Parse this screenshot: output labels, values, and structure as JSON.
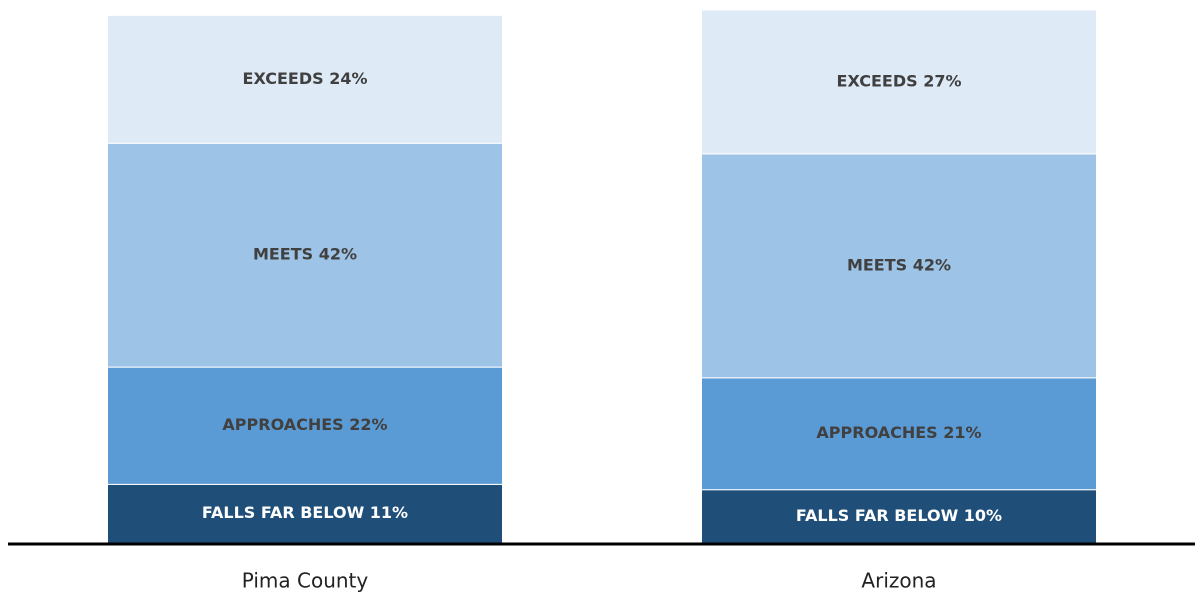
{
  "chart_data": {
    "type": "stacked_bar",
    "categories": [
      "Pima County",
      "Arizona"
    ],
    "series": [
      {
        "color": "#1f4e79",
        "label_color": "#ffffff",
        "values": [
          11,
          10
        ],
        "value_labels": [
          "FALLS FAR BELOW 11%",
          "FALLS FAR BELOW 10%"
        ]
      },
      {
        "color": "#5b9bd5",
        "label_color": "#404040",
        "values": [
          22,
          21
        ],
        "value_labels": [
          "APPROACHES 22%",
          "APPROACHES 21%"
        ]
      },
      {
        "color": "#9dc3e6",
        "label_color": "#404040",
        "values": [
          42,
          42
        ],
        "value_labels": [
          "MEETS 42%",
          "MEETS 42%"
        ]
      },
      {
        "color": "#deeaf6",
        "label_color": "#404040",
        "values": [
          24,
          27
        ],
        "value_labels": [
          "EXCEEDS 24%",
          "EXCEEDS 27%"
        ]
      }
    ],
    "ylim": [
      0,
      100
    ]
  }
}
